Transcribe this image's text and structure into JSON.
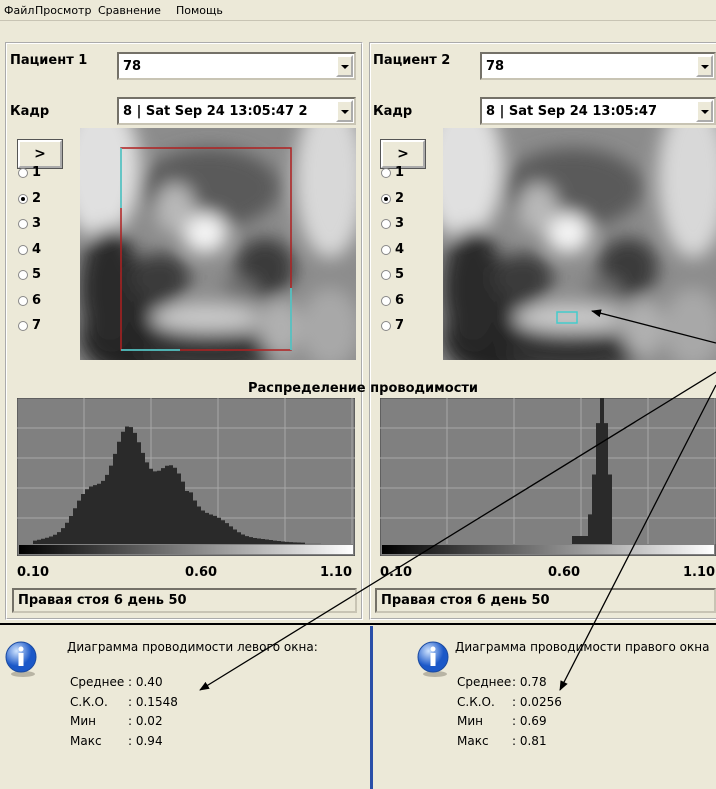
{
  "menu": [
    "Файл",
    "Просмотр",
    "Сравнение",
    "Помощь"
  ],
  "histogram_title": "Распределение проводимости",
  "panels": [
    {
      "patient_label": "Пациент 1",
      "patient_value": "78",
      "frame_label": "Кадр",
      "frame_value": "8 | Sat Sep 24 13:05:47 2",
      "button": ">",
      "options": [
        "1",
        "2",
        "3",
        "4",
        "5",
        "6",
        "7"
      ],
      "axis_labels": [
        "0.10",
        "0.60",
        "1.10"
      ],
      "status": "Правая стоя 6 день 50"
    },
    {
      "patient_label": "Пациент 2",
      "patient_value": "78",
      "frame_label": "Кадр",
      "frame_value": "8 | Sat Sep 24 13:05:47",
      "button": ">",
      "options": [
        "1",
        "2",
        "3",
        "4",
        "5",
        "6",
        "7"
      ],
      "axis_labels": [
        "0.10",
        "0.60",
        "1.10"
      ],
      "status": "Правая стоя 6 день 50"
    }
  ],
  "info": [
    {
      "heading": "Диаграмма проводимости левого окна:",
      "stats": [
        {
          "label": "Среднее",
          "value": ": 0.40"
        },
        {
          "label": "С.К.О.",
          "value": ": 0.1548"
        },
        {
          "label": "Мин",
          "value": ": 0.02"
        },
        {
          "label": "Макс",
          "value": ": 0.94"
        }
      ]
    },
    {
      "heading": "Диаграмма проводимости правого окна",
      "stats": [
        {
          "label": "Среднее",
          "value": ": 0.78"
        },
        {
          "label": "С.К.О.",
          "value": ": 0.0256"
        },
        {
          "label": "Мин",
          "value": ": 0.69"
        },
        {
          "label": "Макс",
          "value": ": 0.81"
        }
      ]
    }
  ]
}
